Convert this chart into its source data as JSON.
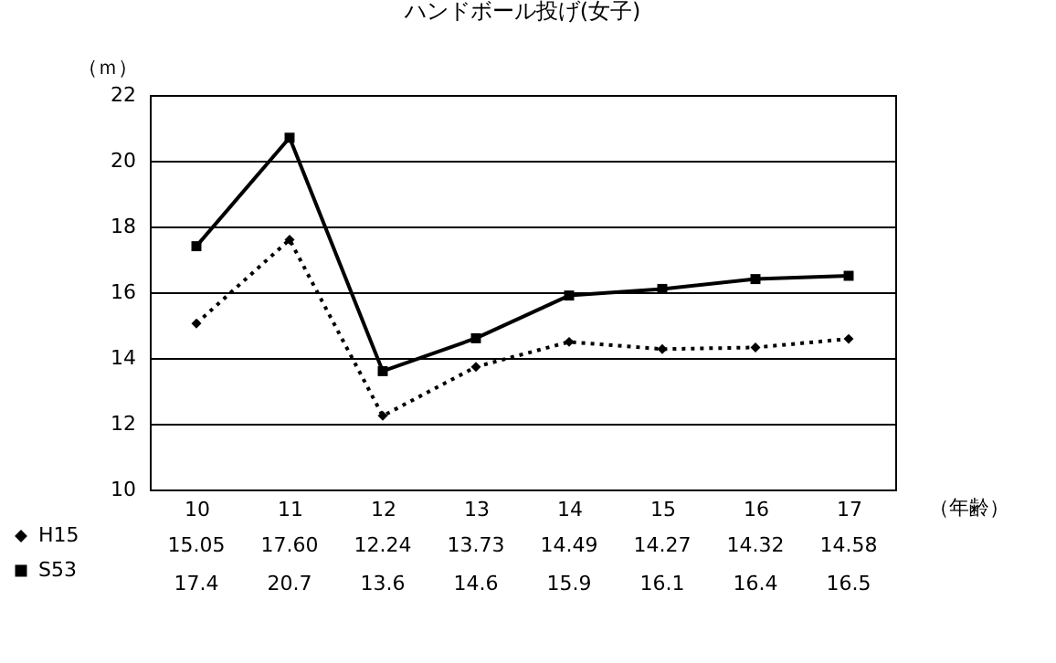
{
  "chart_data": {
    "type": "line",
    "title": "ハンドボール投げ(女子)",
    "ylabel": "（ｍ）",
    "xlabel": "（年齢）",
    "categories": [
      "10",
      "11",
      "12",
      "13",
      "14",
      "15",
      "16",
      "17"
    ],
    "series": [
      {
        "name": "H15",
        "color": "#000000",
        "marker": "diamond",
        "line_style": "dotted",
        "values": [
          15.05,
          17.6,
          12.24,
          13.73,
          14.49,
          14.27,
          14.32,
          14.58
        ],
        "value_labels": [
          "15.05",
          "17.60",
          "12.24",
          "13.73",
          "14.49",
          "14.27",
          "14.32",
          "14.58"
        ]
      },
      {
        "name": "S53",
        "color": "#000000",
        "marker": "square",
        "line_style": "solid",
        "values": [
          17.4,
          20.7,
          13.6,
          14.6,
          15.9,
          16.1,
          16.4,
          16.5
        ],
        "value_labels": [
          "17.4",
          "20.7",
          "13.6",
          "14.6",
          "15.9",
          "16.1",
          "16.4",
          "16.5"
        ]
      }
    ],
    "ylim": [
      10,
      22
    ],
    "yticks": [
      10,
      12,
      14,
      16,
      18,
      20,
      22
    ],
    "grid": "y",
    "legend": "bottom left"
  }
}
